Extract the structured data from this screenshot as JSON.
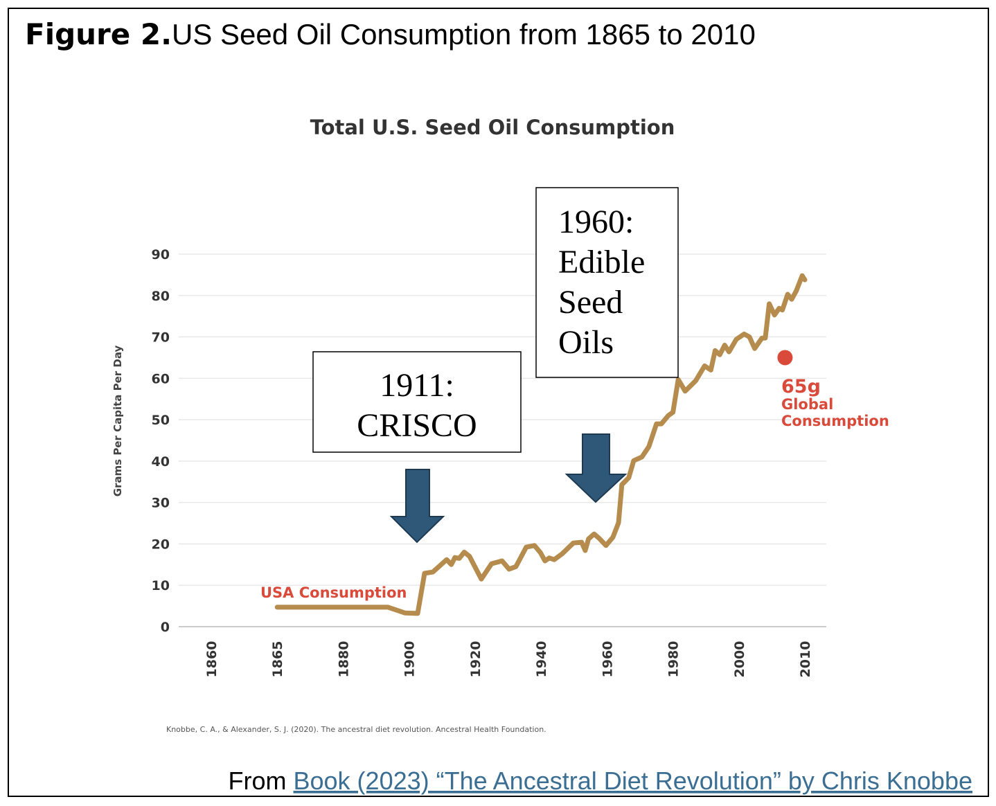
{
  "figure_label": "Figure 2.",
  "figure_title": "US Seed Oil Consumption from 1865 to 2010",
  "chart_data": {
    "type": "line",
    "title": "Total U.S. Seed Oil Consumption",
    "y_label": "Grams Per Capita Per Day",
    "xlim": [
      1860,
      2010
    ],
    "xticks": [
      1860,
      1865,
      1880,
      1900,
      1920,
      1940,
      1960,
      1980,
      2000,
      2010
    ],
    "ylim": [
      0,
      90
    ],
    "yticks": [
      0,
      10,
      20,
      30,
      40,
      50,
      60,
      70,
      80,
      90
    ],
    "grid": true,
    "series": [
      {
        "name": "USA Consumption",
        "color": "#b58c4e",
        "x": [
          1865,
          1893.6,
          1898.8,
          1902.6,
          1904.7,
          1907.2,
          1911.4,
          1912.8,
          1913.9,
          1915.2,
          1916.7,
          1918.3,
          1921.9,
          1925,
          1928.2,
          1930.3,
          1932.4,
          1935.5,
          1938,
          1939.8,
          1941.2,
          1942.5,
          1944,
          1946.4,
          1949.8,
          1952.3,
          1953.4,
          1954.4,
          1956.1,
          1957.8,
          1959.7,
          1961.8,
          1963.5,
          1964.5,
          1966.6,
          1968.1,
          1970.6,
          1972.7,
          1975,
          1976.5,
          1978.6,
          1980,
          1981.6,
          1983.7,
          1986.9,
          1989.6,
          1991.5,
          1992.8,
          1994.2,
          1995.7,
          1997,
          1999.2,
          2000.8,
          2001.6,
          2002.4,
          2003.5,
          2004,
          2004.6,
          2005.4,
          2006.1,
          2006.6,
          2007.4,
          2008,
          2008.7,
          2009.6,
          2010
        ],
        "values": [
          4.7,
          4.7,
          3.3,
          3.2,
          12.9,
          13.2,
          16.2,
          15,
          16.7,
          16.5,
          18,
          17,
          11.5,
          15.2,
          15.9,
          13.9,
          14.5,
          19.2,
          19.6,
          17.9,
          15.9,
          16.6,
          16.2,
          17.6,
          20.2,
          20.4,
          18.4,
          21.2,
          22.4,
          21.2,
          19.6,
          21.6,
          25.1,
          34.3,
          36,
          40.1,
          41,
          43.5,
          49,
          49,
          51,
          51.8,
          59.7,
          56.9,
          59.4,
          63,
          62,
          66.7,
          65.7,
          68,
          66.4,
          69.4,
          70.7,
          70,
          67.2,
          69.7,
          69.7,
          78,
          75.3,
          76.9,
          76.5,
          80.3,
          79.1,
          81.1,
          84.8,
          83.8
        ]
      },
      {
        "color": "#d94a3a",
        "x": [
          2007
        ],
        "values": [
          65
        ],
        "value_labels": [
          "65g"
        ]
      }
    ],
    "annotations": [
      "Global",
      "Consumption"
    ],
    "callouts": [
      [
        "1911:",
        "CRISCO"
      ],
      [
        "1960:",
        "Edible",
        "Seed",
        "Oils"
      ]
    ],
    "source": "Knobbe, C. A., & Alexander, S. J. (2020). The ancestral diet revolution. Ancestral Health Foundation."
  },
  "footer": {
    "prefix": "From",
    "link": "Book (2023) “The Ancestral Diet Revolution” by Chris Knobbe"
  }
}
